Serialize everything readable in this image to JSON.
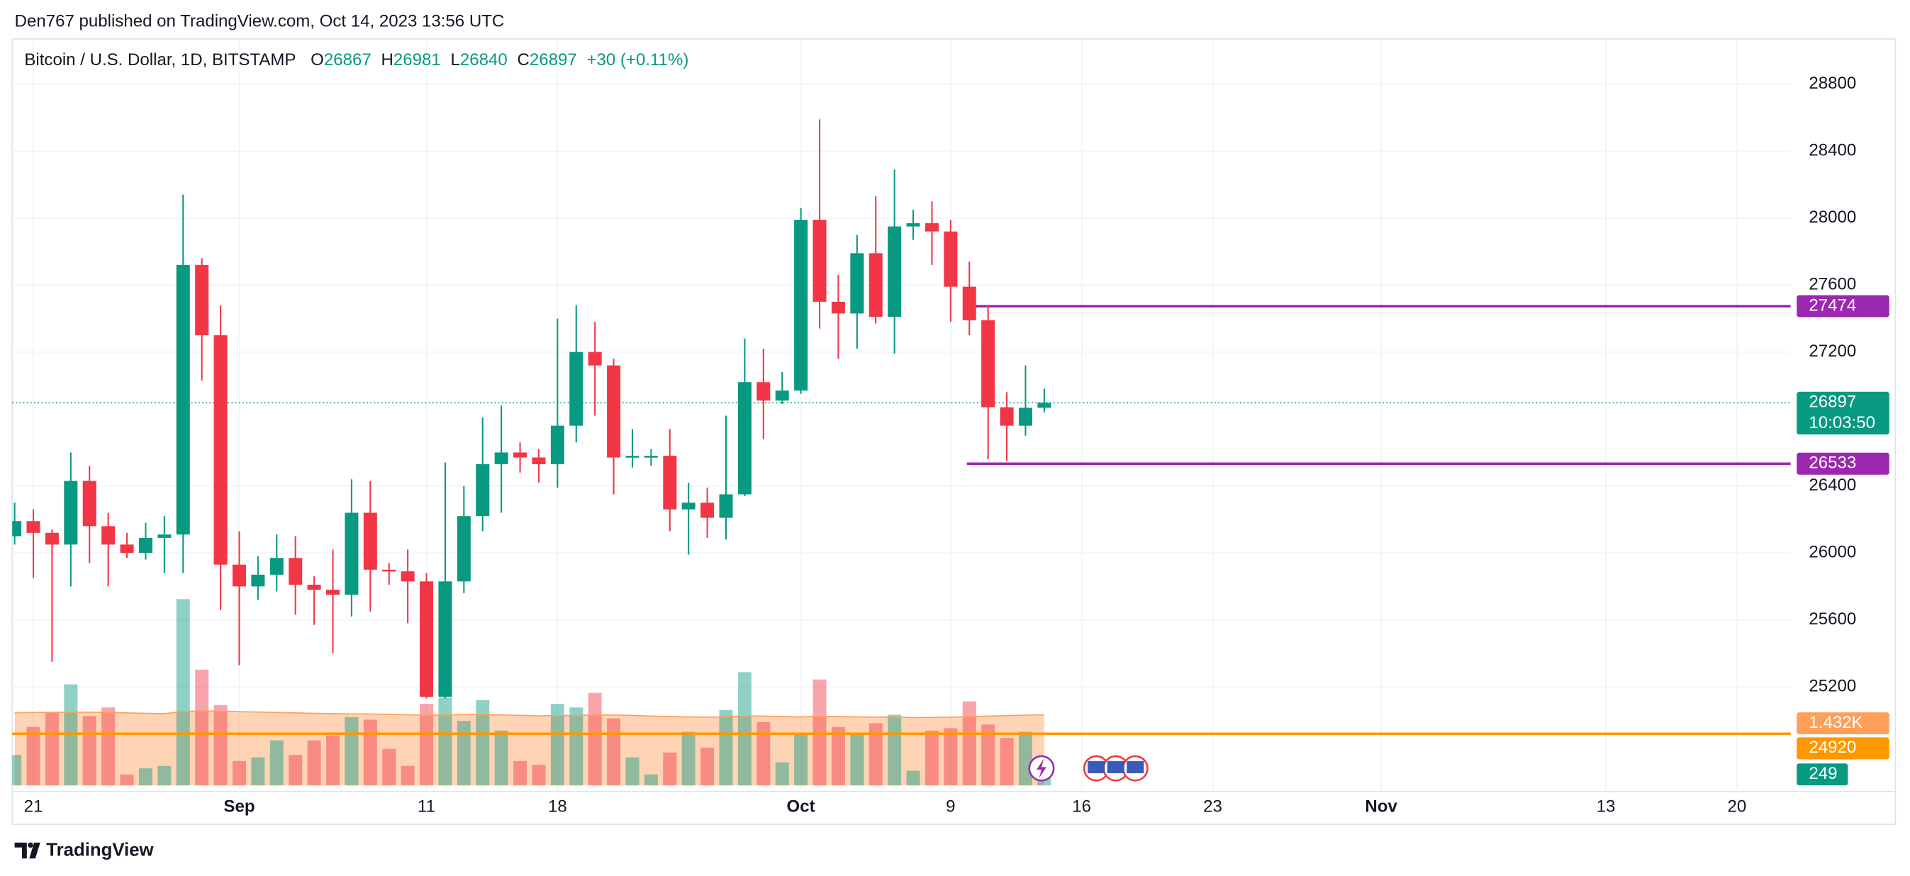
{
  "header": {
    "publisher": "Den767 published on TradingView.com, Oct 14, 2023 13:56 UTC"
  },
  "chart_data": {
    "type": "candlestick",
    "title": "Bitcoin / U.S. Dollar, 1D, BITSTAMP",
    "legend_keys": [
      "O",
      "H",
      "L",
      "C"
    ],
    "change_label": "+30 (+0.11%)",
    "x": [
      "Aug 20",
      "Aug 21",
      "Aug 22",
      "Aug 23",
      "Aug 24",
      "Aug 25",
      "Aug 26",
      "Aug 27",
      "Aug 28",
      "Aug 29",
      "Aug 30",
      "Aug 31",
      "Sep 1",
      "Sep 2",
      "Sep 3",
      "Sep 4",
      "Sep 5",
      "Sep 6",
      "Sep 7",
      "Sep 8",
      "Sep 9",
      "Sep 10",
      "Sep 11",
      "Sep 12",
      "Sep 13",
      "Sep 14",
      "Sep 15",
      "Sep 16",
      "Sep 17",
      "Sep 18",
      "Sep 19",
      "Sep 20",
      "Sep 21",
      "Sep 22",
      "Sep 23",
      "Sep 24",
      "Sep 25",
      "Sep 26",
      "Sep 27",
      "Sep 28",
      "Sep 29",
      "Sep 30",
      "Oct 1",
      "Oct 2",
      "Oct 3",
      "Oct 4",
      "Oct 5",
      "Oct 6",
      "Oct 7",
      "Oct 8",
      "Oct 9",
      "Oct 10",
      "Oct 11",
      "Oct 12",
      "Oct 13",
      "Oct 14"
    ],
    "open": [
      26100,
      26190,
      26120,
      26050,
      26430,
      26160,
      26050,
      26000,
      26090,
      26110,
      27720,
      27300,
      25930,
      25800,
      25870,
      25970,
      25810,
      25780,
      25750,
      26240,
      25900,
      25890,
      25830,
      25140,
      25830,
      26220,
      26530,
      26600,
      26570,
      26530,
      26760,
      27200,
      27120,
      26570,
      26580,
      26580,
      26260,
      26300,
      26210,
      26350,
      27020,
      26910,
      26970,
      27990,
      27500,
      27430,
      27790,
      27410,
      27950,
      27970,
      27920,
      27590,
      27390,
      26870,
      26760,
      26867
    ],
    "high": [
      26300,
      26260,
      26140,
      26600,
      26520,
      26240,
      26120,
      26180,
      26220,
      28140,
      27760,
      27480,
      26130,
      25980,
      26110,
      26100,
      25860,
      26020,
      26440,
      26430,
      25940,
      26020,
      25880,
      26540,
      26400,
      26810,
      26880,
      26660,
      26620,
      27400,
      27480,
      27380,
      27160,
      26740,
      26620,
      26740,
      26420,
      26390,
      26820,
      27280,
      27220,
      27080,
      28060,
      28590,
      27660,
      27900,
      28130,
      28290,
      28050,
      28100,
      27990,
      27740,
      27480,
      26960,
      27120,
      26981
    ],
    "low": [
      26050,
      25850,
      25350,
      25800,
      25940,
      25800,
      25970,
      25960,
      25880,
      25880,
      27030,
      25660,
      25330,
      25720,
      25770,
      25630,
      25570,
      25400,
      25620,
      25650,
      25810,
      25580,
      25130,
      25130,
      25760,
      26130,
      26240,
      26480,
      26420,
      26390,
      26660,
      26820,
      26350,
      26510,
      26520,
      26130,
      25990,
      26090,
      26080,
      26340,
      26680,
      26890,
      26950,
      27340,
      27160,
      27220,
      27370,
      27190,
      27870,
      27720,
      27380,
      27300,
      26560,
      26550,
      26700,
      26840
    ],
    "close": [
      26190,
      26120,
      26050,
      26430,
      26160,
      26050,
      26000,
      26090,
      26110,
      27720,
      27300,
      25930,
      25800,
      25870,
      25970,
      25810,
      25780,
      25750,
      26240,
      25900,
      25890,
      25830,
      25140,
      25830,
      26220,
      26530,
      26600,
      26570,
      26530,
      26760,
      27200,
      27120,
      26570,
      26580,
      26580,
      26260,
      26300,
      26210,
      26350,
      27020,
      26910,
      26970,
      27990,
      27500,
      27430,
      27790,
      27410,
      27950,
      27970,
      27920,
      27590,
      27390,
      26870,
      26760,
      26867,
      26897
    ],
    "up_color": "#089981",
    "down_color": "#f23645",
    "volume": [
      618,
      1186,
      1482,
      2050,
      1408,
      1581,
      222,
      346,
      395,
      3779,
      2347,
      1630,
      494,
      568,
      914,
      618,
      914,
      1013,
      1383,
      1334,
      741,
      395,
      1655,
      1778,
      1309,
      1729,
      1112,
      494,
      420,
      1655,
      1581,
      1877,
      1359,
      568,
      222,
      667,
      1087,
      766,
      1531,
      2297,
      1284,
      469,
      1037,
      2149,
      1186,
      1037,
      1260,
      1433,
      296,
      1112,
      1161,
      1704,
      1235,
      963,
      1087,
      249
    ],
    "volume_ma": [
      1475,
      1478,
      1482,
      1484,
      1486,
      1480,
      1470,
      1462,
      1455,
      1500,
      1510,
      1505,
      1495,
      1488,
      1480,
      1470,
      1462,
      1455,
      1450,
      1448,
      1440,
      1430,
      1425,
      1430,
      1435,
      1438,
      1430,
      1420,
      1410,
      1415,
      1420,
      1430,
      1428,
      1420,
      1405,
      1395,
      1390,
      1385,
      1390,
      1410,
      1405,
      1395,
      1390,
      1400,
      1395,
      1390,
      1385,
      1388,
      1375,
      1380,
      1385,
      1395,
      1405,
      1415,
      1425,
      1432
    ],
    "volume_ma_label": "1.432K",
    "volume_ma_color": "#ff9f5a",
    "countdown": "10:03:50",
    "hlines": [
      {
        "value": 27474,
        "color": "#9c27b0",
        "from": "Oct 10"
      },
      {
        "value": 26533,
        "color": "#9c27b0",
        "from": "Oct 10"
      },
      {
        "value": 24920,
        "color": "#ff9800"
      }
    ],
    "xlim": [
      "Aug 20",
      "Nov 23"
    ],
    "xticks": [
      {
        "value": "Aug 21",
        "label": "21"
      },
      {
        "value": "Sep 1",
        "label": "Sep"
      },
      {
        "value": "Sep 11",
        "label": "11"
      },
      {
        "value": "Sep 18",
        "label": "18"
      },
      {
        "value": "Oct 1",
        "label": "Oct"
      },
      {
        "value": "Oct 9",
        "label": "9"
      },
      {
        "value": "Oct 16",
        "label": "16"
      },
      {
        "value": "Oct 23",
        "label": "23"
      },
      {
        "value": "Nov 1",
        "label": "Nov"
      },
      {
        "value": "Nov 13",
        "label": "13"
      },
      {
        "value": "Nov 20",
        "label": "20"
      }
    ],
    "ylim": [
      24575,
      29070
    ],
    "yticks": [
      25200,
      25600,
      26000,
      26400,
      27200,
      27600,
      28000,
      28400,
      28800
    ],
    "grid": true
  },
  "footer": {
    "brand": "TradingView"
  }
}
